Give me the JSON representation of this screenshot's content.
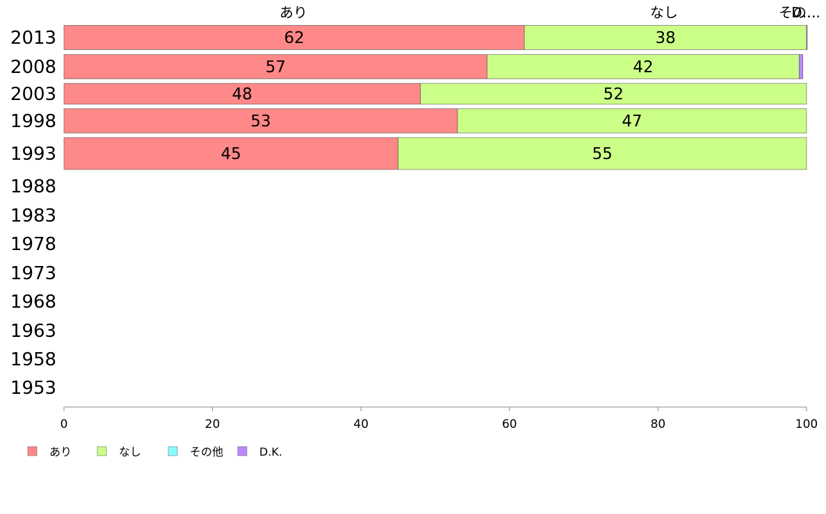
{
  "colors": {
    "あり": "#ff8888",
    "なし": "#ccff88",
    "その他": "#88ffff",
    "D.K.": "#bb88ff",
    "axis": "#888888",
    "bar_border": "#555555"
  },
  "chart_data": {
    "type": "bar",
    "orientation": "horizontal",
    "stacked": true,
    "categories": [
      "2013",
      "2008",
      "2003",
      "1998",
      "1993",
      "1988",
      "1983",
      "1978",
      "1973",
      "1968",
      "1963",
      "1958",
      "1953"
    ],
    "series": [
      {
        "name": "あり",
        "values": [
          62,
          57,
          48,
          53,
          45,
          null,
          null,
          null,
          null,
          null,
          null,
          null,
          null
        ]
      },
      {
        "name": "なし",
        "values": [
          38,
          42,
          52,
          47,
          55,
          null,
          null,
          null,
          null,
          null,
          null,
          null,
          null
        ]
      },
      {
        "name": "その他",
        "values": [
          0,
          0,
          0,
          0,
          0,
          null,
          null,
          null,
          null,
          null,
          null,
          null,
          null
        ]
      },
      {
        "name": "D.K.",
        "values": [
          0.5,
          0.5,
          0,
          0,
          0,
          null,
          null,
          null,
          null,
          null,
          null,
          null,
          null
        ]
      }
    ],
    "header_labels": [
      "あり",
      "なし",
      "その…",
      "D…"
    ],
    "xlim": [
      0,
      100
    ],
    "x_ticks": [
      "0",
      "20",
      "40",
      "60",
      "80",
      "100"
    ],
    "legend": {
      "position": "bottom-left",
      "entries": [
        "あり",
        "なし",
        "その他",
        "D.K."
      ]
    },
    "grid": false
  }
}
